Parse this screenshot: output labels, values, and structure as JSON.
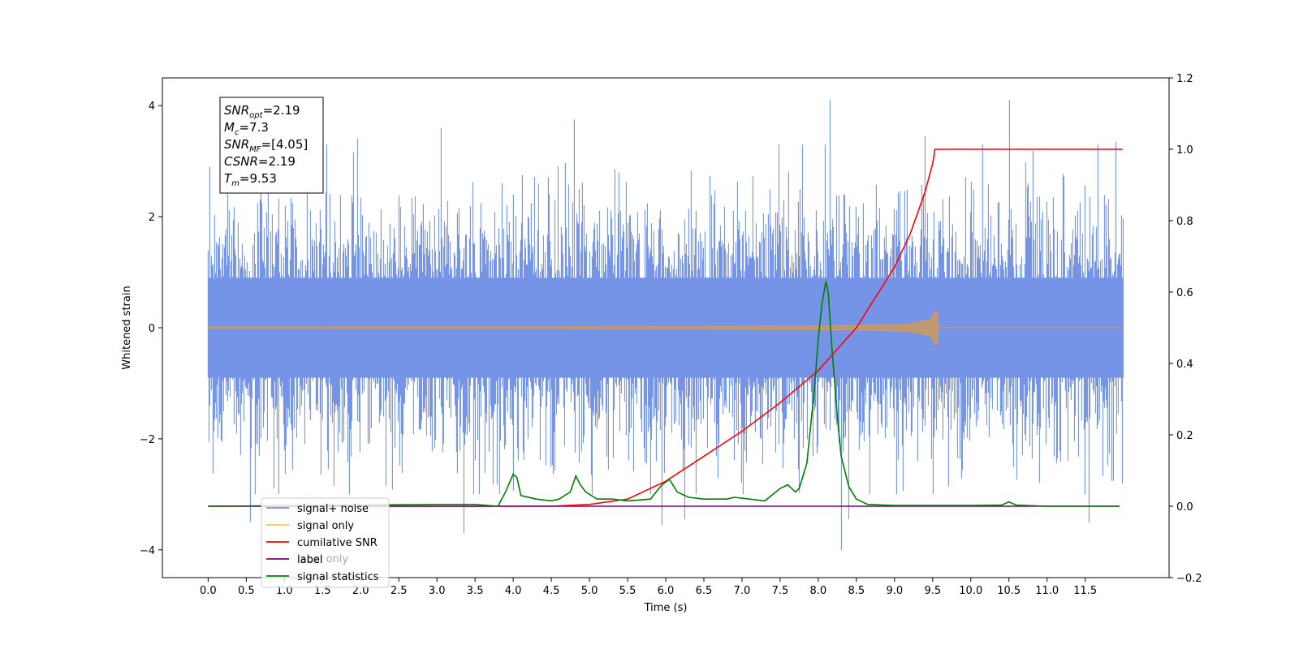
{
  "chart_data": {
    "type": "line",
    "title": "",
    "xlabel": "Time (s)",
    "ylabel": "Whitened strain",
    "y2label": "",
    "xlim": [
      -0.6,
      12.6
    ],
    "ylim": [
      -4.5,
      4.5
    ],
    "y2lim": [
      -0.2,
      1.2
    ],
    "x_ticks": [
      0.0,
      0.5,
      1.0,
      1.5,
      2.0,
      2.5,
      3.0,
      3.5,
      4.0,
      4.5,
      5.0,
      5.5,
      6.0,
      6.5,
      7.0,
      7.5,
      8.0,
      8.5,
      9.0,
      9.5,
      10.0,
      10.5,
      11.0,
      11.5
    ],
    "x_tick_labels": [
      "0.0",
      "0.5",
      "1.0",
      "1.5",
      "2.0",
      "2.5",
      "3.0",
      "3.5",
      "4.0",
      "4.5",
      "5.0",
      "5.5",
      "6.0",
      "6.5",
      "7.0",
      "7.5",
      "8.0",
      "8.5",
      "9.0",
      "9.5",
      "10.0",
      "10.5",
      "11.0",
      "11.5"
    ],
    "y_ticks": [
      -4,
      -2,
      0,
      2,
      4
    ],
    "y_tick_labels": [
      "−4",
      "−2",
      "0",
      "2",
      "4"
    ],
    "y2_ticks": [
      -0.2,
      0.0,
      0.2,
      0.4,
      0.6,
      0.8,
      1.0,
      1.2
    ],
    "y2_tick_labels": [
      "−0.2",
      "0.0",
      "0.2",
      "0.4",
      "0.6",
      "0.8",
      "1.0",
      "1.2"
    ],
    "grid": false,
    "legend_position": "lower-left",
    "series": [
      {
        "name": "signal+ noise",
        "axis": "left",
        "color": "#6f8ee6",
        "kind": "noise",
        "x_range": [
          0.0,
          12.0
        ],
        "sigma": 1.0,
        "typical_min": -3.0,
        "typical_max": 3.3,
        "spikes": [
          {
            "x": 0.02,
            "y": 2.9
          },
          {
            "x": 0.55,
            "y": -3.5
          },
          {
            "x": 1.55,
            "y": 3.3
          },
          {
            "x": 1.95,
            "y": 3.4
          },
          {
            "x": 3.05,
            "y": 3.6
          },
          {
            "x": 3.35,
            "y": -3.7
          },
          {
            "x": 4.8,
            "y": 3.75
          },
          {
            "x": 5.95,
            "y": -3.55
          },
          {
            "x": 6.25,
            "y": -3.45
          },
          {
            "x": 8.15,
            "y": 4.1
          },
          {
            "x": 8.3,
            "y": -4.0
          },
          {
            "x": 8.4,
            "y": -3.45
          },
          {
            "x": 9.4,
            "y": 3.45
          },
          {
            "x": 10.5,
            "y": 4.1
          },
          {
            "x": 11.55,
            "y": -3.5
          },
          {
            "x": 11.9,
            "y": 3.35
          }
        ]
      },
      {
        "name": "signal only",
        "axis": "left",
        "color": "#ffc04c",
        "kind": "chirp",
        "x_range": [
          0.0,
          12.0
        ],
        "merger_time": 9.53,
        "peak_amplitude": 0.3
      },
      {
        "name": "cumilative SNR",
        "axis": "right",
        "color": "#ff0000",
        "x": [
          0.0,
          4.5,
          5.0,
          5.5,
          6.0,
          6.5,
          7.0,
          7.5,
          8.0,
          8.5,
          9.0,
          9.2,
          9.4,
          9.5,
          9.53,
          10.0,
          11.0,
          11.99
        ],
        "values": [
          0.0,
          0.0,
          0.005,
          0.02,
          0.07,
          0.14,
          0.21,
          0.29,
          0.38,
          0.5,
          0.67,
          0.76,
          0.88,
          0.96,
          1.0,
          1.0,
          1.0,
          1.0
        ]
      },
      {
        "name": "label",
        "axis": "right",
        "color": "#800080",
        "x": [
          0.0,
          11.95
        ],
        "values": [
          0.0,
          0.0
        ]
      },
      {
        "name": "signal statistics",
        "axis": "right",
        "color": "#008000",
        "x": [
          0.0,
          0.1,
          3.0,
          3.5,
          3.8,
          3.9,
          4.0,
          4.05,
          4.1,
          4.3,
          4.5,
          4.6,
          4.75,
          4.82,
          4.88,
          4.95,
          5.1,
          5.3,
          5.5,
          5.8,
          5.95,
          6.05,
          6.15,
          6.3,
          6.5,
          6.8,
          6.9,
          7.1,
          7.3,
          7.5,
          7.6,
          7.7,
          7.75,
          7.85,
          7.95,
          8.0,
          8.05,
          8.1,
          8.13,
          8.18,
          8.25,
          8.3,
          8.4,
          8.5,
          8.65,
          9.0,
          9.5,
          10.0,
          10.4,
          10.5,
          10.6,
          11.0,
          11.95
        ],
        "values": [
          0.0,
          0.0,
          0.005,
          0.005,
          0.0,
          0.04,
          0.09,
          0.08,
          0.03,
          0.02,
          0.015,
          0.02,
          0.04,
          0.085,
          0.06,
          0.04,
          0.02,
          0.02,
          0.015,
          0.02,
          0.06,
          0.075,
          0.04,
          0.025,
          0.02,
          0.02,
          0.025,
          0.02,
          0.015,
          0.05,
          0.06,
          0.04,
          0.05,
          0.12,
          0.33,
          0.47,
          0.57,
          0.63,
          0.6,
          0.44,
          0.25,
          0.14,
          0.055,
          0.02,
          0.005,
          0.002,
          0.002,
          0.002,
          0.003,
          0.012,
          0.003,
          0.0,
          0.0
        ]
      }
    ],
    "legend_entries": [
      {
        "label": "signal+ noise",
        "color": "#6f8ee6"
      },
      {
        "label": "signal only",
        "color": "#ffc04c"
      },
      {
        "label": "cumilative SNR",
        "color": "#ff0000"
      },
      {
        "label": "label",
        "color": "#800080"
      },
      {
        "label": "signal statistics",
        "color": "#008000"
      }
    ],
    "hidden_legend_text": "label only",
    "info_box": [
      {
        "sym": "SNR",
        "sub": "opt",
        "value": "=2.19"
      },
      {
        "sym": "M",
        "sub": "c",
        "value": "=7.3"
      },
      {
        "sym": "SNR",
        "sub": "MF",
        "value": "=[4.05]"
      },
      {
        "sym": "CSNR",
        "sub": "",
        "value": "=2.19"
      },
      {
        "sym": "T",
        "sub": "m",
        "value": "=9.53"
      }
    ]
  }
}
